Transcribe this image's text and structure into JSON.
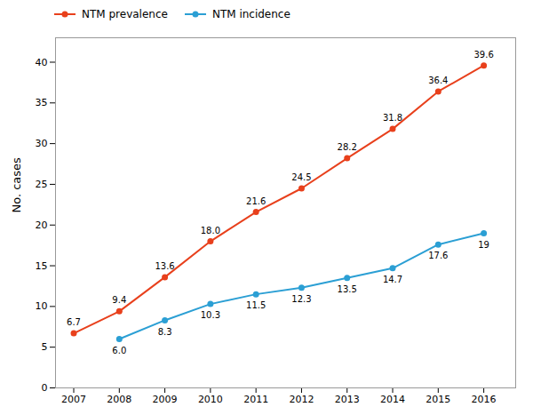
{
  "chart_data": {
    "type": "line",
    "x": [
      2007,
      2008,
      2009,
      2010,
      2011,
      2012,
      2013,
      2014,
      2015,
      2016
    ],
    "xlim": [
      2006.6,
      2016.7
    ],
    "xticks": [
      2007,
      2008,
      2009,
      2010,
      2011,
      2012,
      2013,
      2014,
      2015,
      2016
    ],
    "ylabel": "No. cases",
    "ylim": [
      0,
      43
    ],
    "yticks": [
      0,
      5,
      10,
      15,
      20,
      25,
      30,
      35,
      40
    ],
    "grid": false,
    "legend": "upper left",
    "data_labels": true,
    "series": [
      {
        "name": "NTM prevalence",
        "color": "#e8401c",
        "marker": "circle",
        "values": [
          6.7,
          9.4,
          13.6,
          18.0,
          21.6,
          24.5,
          28.2,
          31.8,
          36.4,
          39.6
        ],
        "value_labels": [
          "6.7",
          "9.4",
          "13.6",
          "18.0",
          "21.6",
          "24.5",
          "28.2",
          "31.8",
          "36.4",
          "39.6"
        ]
      },
      {
        "name": "NTM incidence",
        "color": "#2b9fd4",
        "marker": "circle",
        "values": [
          null,
          6.0,
          8.3,
          10.3,
          11.5,
          12.3,
          13.5,
          14.7,
          17.6,
          19.0
        ],
        "value_labels": [
          null,
          "6.0",
          "8.3",
          "10.3",
          "11.5",
          "12.3",
          "13.5",
          "14.7",
          "17.6",
          "19"
        ]
      }
    ]
  }
}
